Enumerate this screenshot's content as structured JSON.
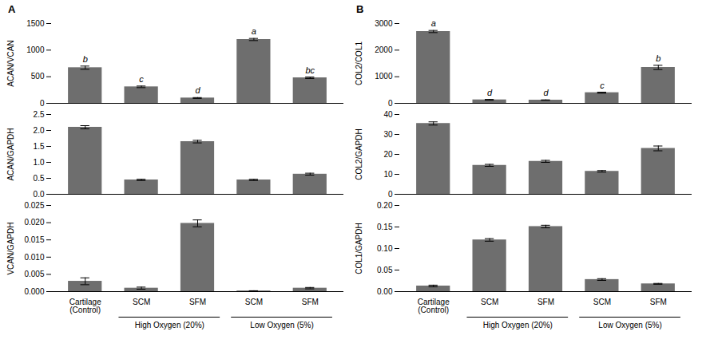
{
  "chart_data": [
    {
      "type": "bar",
      "title": "A",
      "ylabel": "ACAN/VCAN",
      "categories": [
        "Cartilage\n(Control)",
        "SCM",
        "SFM",
        "SCM",
        "SFM"
      ],
      "values": [
        670,
        310,
        100,
        1200,
        480
      ],
      "errors": [
        30,
        15,
        8,
        20,
        15
      ],
      "letters": [
        "b",
        "c",
        "d",
        "a",
        "bc"
      ],
      "color": "#6e6e6e",
      "ylim": [
        0,
        1500
      ],
      "yticks": [
        0,
        500,
        1000,
        1500
      ],
      "tick_labels": "y"
    },
    {
      "type": "bar",
      "ylabel": "ACAN/GAPDH",
      "categories": [
        "Cartilage\n(Control)",
        "SCM",
        "SFM",
        "SCM",
        "SFM"
      ],
      "values": [
        2.1,
        0.45,
        1.65,
        0.45,
        0.63
      ],
      "errors": [
        0.05,
        0.02,
        0.04,
        0.02,
        0.03
      ],
      "color": "#6e6e6e",
      "ylim": [
        0,
        2.5
      ],
      "yticks": [
        {
          "value": 0,
          "label": "0.0"
        },
        0.5,
        {
          "value": 1.0,
          "label": "1.0"
        },
        1.5,
        {
          "value": 2.0,
          "label": "2.0"
        },
        2.5
      ],
      "tick_labels": "y"
    },
    {
      "type": "bar",
      "ylabel": "VCAN/GAPDH",
      "categories": [
        "Cartilage\n(Control)",
        "SCM",
        "SFM",
        "SCM",
        "SFM"
      ],
      "values": [
        0.003,
        0.001,
        0.0198,
        0.0002,
        0.001
      ],
      "errors": [
        0.001,
        0.0003,
        0.001,
        5e-05,
        0.0002
      ],
      "groups": [
        null,
        "High Oxygen (20%)",
        "High Oxygen (20%)",
        "Low Oxygen (5%)",
        "Low Oxygen (5%)"
      ],
      "color": "#6e6e6e",
      "ylim": [
        0,
        0.025
      ],
      "yticks": [
        {
          "value": 0,
          "label": "0.000"
        },
        0.005,
        {
          "value": 0.01,
          "label": "0.010"
        },
        0.015,
        {
          "value": 0.02,
          "label": "0.020"
        },
        0.025
      ]
    },
    {
      "type": "bar",
      "title": "B",
      "ylabel": "COL2/COL1",
      "categories": [
        "Cartilage\n(Control)",
        "SCM",
        "SFM",
        "SCM",
        "SFM"
      ],
      "values": [
        2700,
        130,
        120,
        400,
        1350
      ],
      "errors": [
        40,
        15,
        10,
        20,
        80
      ],
      "letters": [
        "a",
        "d",
        "d",
        "c",
        "b"
      ],
      "color": "#6e6e6e",
      "ylim": [
        0,
        3000
      ],
      "yticks": [
        0,
        1000,
        2000,
        3000
      ],
      "tick_labels": "y"
    },
    {
      "type": "bar",
      "ylabel": "COL2/GAPDH",
      "categories": [
        "Cartilage\n(Control)",
        "SCM",
        "SFM",
        "SCM",
        "SFM"
      ],
      "values": [
        35.5,
        14.5,
        16.5,
        11.5,
        23.0
      ],
      "errors": [
        0.8,
        0.5,
        0.5,
        0.4,
        1.2
      ],
      "color": "#6e6e6e",
      "ylim": [
        0,
        40
      ],
      "yticks": [
        0,
        10,
        20,
        30,
        40
      ],
      "tick_labels": "y"
    },
    {
      "type": "bar",
      "ylabel": "COL1/GAPDH",
      "categories": [
        "Cartilage\n(Control)",
        "SCM",
        "SFM",
        "SCM",
        "SFM"
      ],
      "values": [
        0.013,
        0.12,
        0.151,
        0.028,
        0.018
      ],
      "errors": [
        0.002,
        0.003,
        0.003,
        0.002,
        0.001
      ],
      "groups": [
        null,
        "High Oxygen (20%)",
        "High Oxygen (20%)",
        "Low Oxygen (5%)",
        "Low Oxygen (5%)"
      ],
      "color": "#6e6e6e",
      "ylim": [
        0,
        0.2
      ],
      "yticks": [
        {
          "value": 0,
          "label": "0.00"
        },
        0.05,
        {
          "value": 0.1,
          "label": "0.10"
        },
        0.15,
        {
          "value": 0.2,
          "label": "0.20"
        }
      ]
    }
  ]
}
